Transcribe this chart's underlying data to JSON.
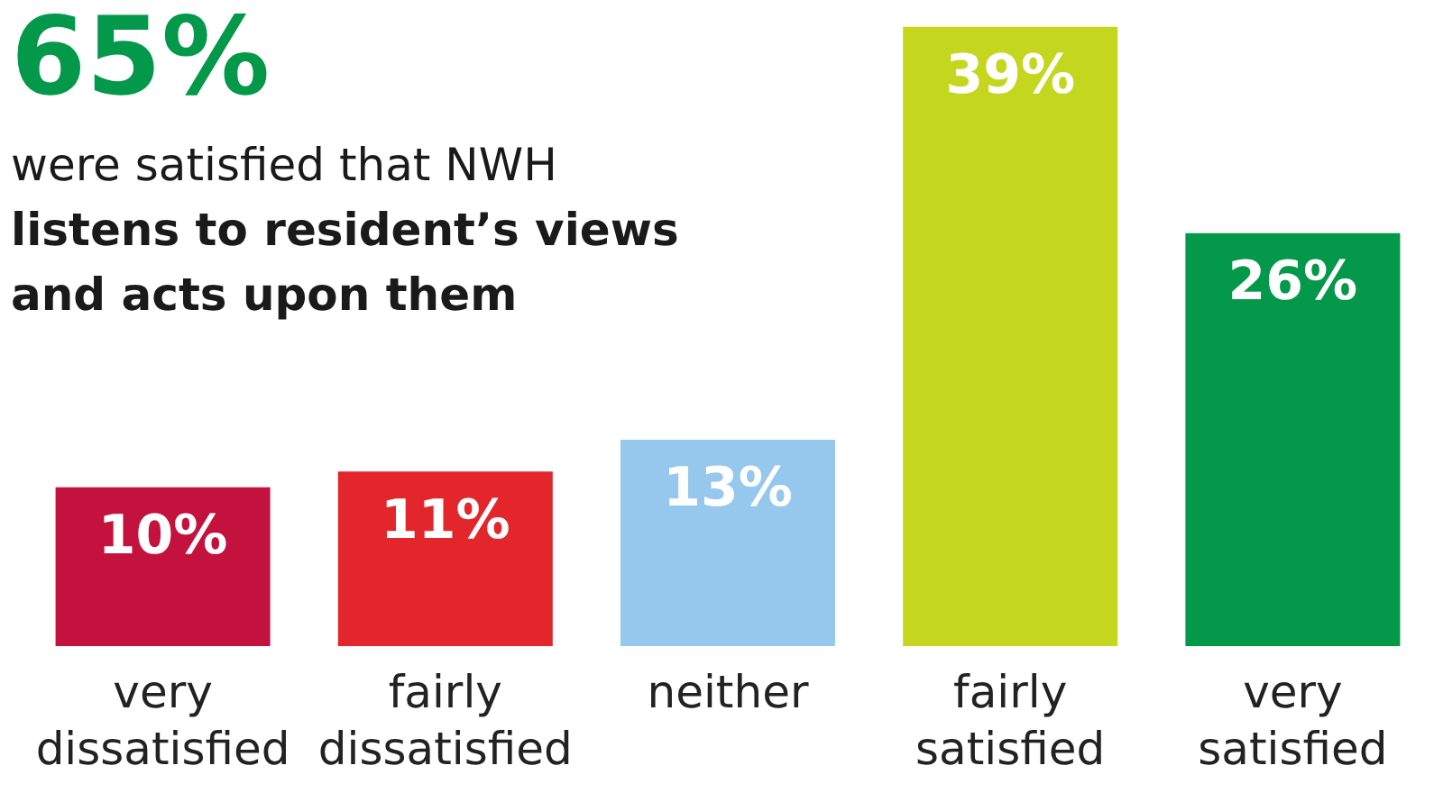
{
  "chart_data": {
    "type": "bar",
    "categories": [
      "very dissatisfied",
      "fairly dissatisfied",
      "neither",
      "fairly satisfied",
      "very satisfied"
    ],
    "values": [
      10,
      11,
      13,
      39,
      26
    ],
    "colors": [
      "#c4123f",
      "#e3262b",
      "#95c8ec",
      "#c4d71e",
      "#03984a"
    ],
    "value_labels": [
      "10%",
      "11%",
      "13%",
      "39%",
      "26%"
    ],
    "annotations": [
      "65%",
      "were satisfied that NWH",
      "listens to resident’s views and acts upon them"
    ]
  }
}
